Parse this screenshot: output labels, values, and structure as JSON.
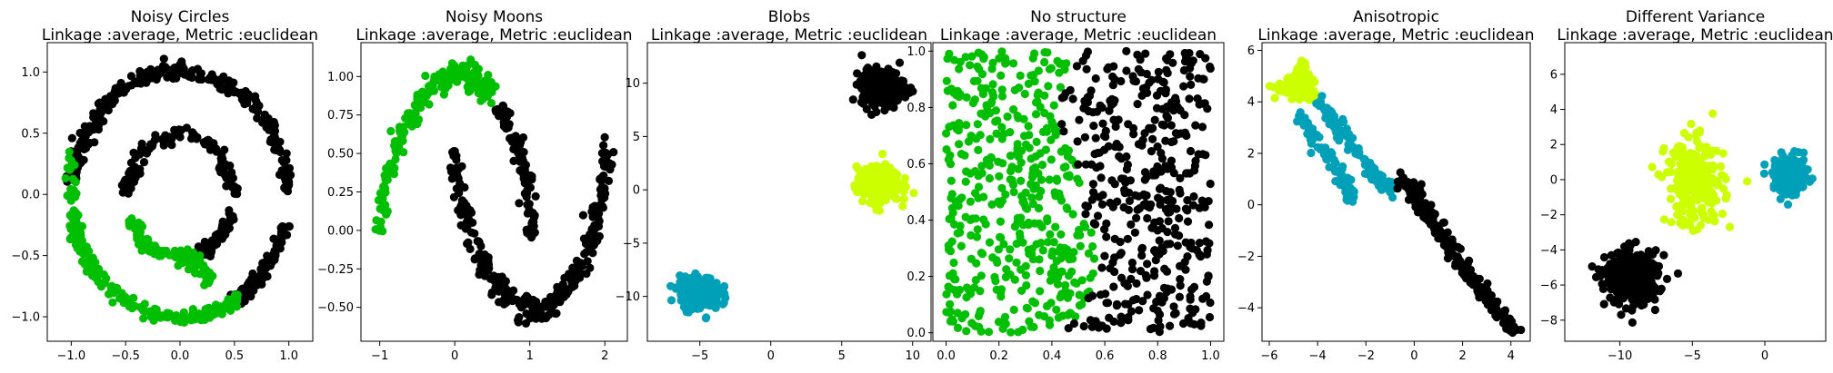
{
  "chart_data": [
    {
      "type": "scatter",
      "title": "Noisy Circles",
      "subtitle": "Linkage :average, Metric :euclidean",
      "xlim": [
        -1.22,
        1.22
      ],
      "ylim": [
        -1.2,
        1.24
      ],
      "xticks": [
        -1.0,
        -0.5,
        0.0,
        0.5,
        1.0
      ],
      "xtick_labels": [
        "−1.0",
        "−0.5",
        "0.0",
        "0.5",
        "1.0"
      ],
      "yticks": [
        -1.0,
        -0.5,
        0.0,
        0.5,
        1.0
      ],
      "ytick_labels": [
        "−1.0",
        "−0.5",
        "0.0",
        "0.5",
        "1.0"
      ],
      "series": [
        {
          "color": "#000000",
          "values": [
            [
              1.0,
              0.0
            ],
            [
              0.95,
              0.3
            ],
            [
              0.81,
              0.58
            ],
            [
              0.6,
              0.8
            ],
            [
              0.3,
              0.95
            ],
            [
              0.0,
              1.02
            ],
            [
              -0.3,
              0.97
            ],
            [
              -0.6,
              0.8
            ],
            [
              -0.8,
              0.6
            ],
            [
              -0.95,
              0.32
            ],
            [
              -0.98,
              0.15
            ],
            [
              0.97,
              -0.25
            ],
            [
              0.86,
              -0.5
            ],
            [
              0.7,
              -0.7
            ],
            [
              0.55,
              -0.85
            ],
            [
              0.5,
              0.0
            ],
            [
              0.35,
              0.36
            ],
            [
              0.0,
              0.52
            ],
            [
              -0.35,
              0.37
            ],
            [
              -0.5,
              0.05
            ],
            [
              0.48,
              -0.15
            ],
            [
              0.35,
              -0.36
            ],
            [
              0.22,
              -0.45
            ]
          ]
        },
        {
          "color": "#00bf00",
          "values": [
            [
              -0.98,
              -0.2
            ],
            [
              -0.93,
              -0.4
            ],
            [
              -0.82,
              -0.6
            ],
            [
              -0.6,
              -0.82
            ],
            [
              -0.3,
              -0.96
            ],
            [
              0.0,
              -1.02
            ],
            [
              0.3,
              -0.97
            ],
            [
              0.5,
              -0.87
            ],
            [
              -0.45,
              -0.2
            ],
            [
              -0.35,
              -0.4
            ],
            [
              -0.15,
              -0.5
            ],
            [
              0.1,
              -0.5
            ],
            [
              0.25,
              -0.68
            ],
            [
              -1.0,
              0.35
            ]
          ]
        }
      ]
    },
    {
      "type": "scatter",
      "title": "Noisy Moons",
      "subtitle": "Linkage :average, Metric :euclidean",
      "xlim": [
        -1.25,
        2.3
      ],
      "ylim": [
        -0.72,
        1.22
      ],
      "xticks": [
        -1,
        0,
        1,
        2
      ],
      "xtick_labels": [
        "−1",
        "0",
        "1",
        "2"
      ],
      "yticks": [
        -0.5,
        -0.25,
        0.0,
        0.25,
        0.5,
        0.75,
        1.0
      ],
      "ytick_labels": [
        "−0.50",
        "−0.25",
        "0.00",
        "0.25",
        "0.50",
        "0.75",
        "1.00"
      ],
      "series": [
        {
          "color": "#00bf00",
          "values": [
            [
              -1.0,
              0.0
            ],
            [
              -0.9,
              0.35
            ],
            [
              -0.7,
              0.65
            ],
            [
              -0.45,
              0.85
            ],
            [
              -0.2,
              0.98
            ],
            [
              0.0,
              1.02
            ],
            [
              0.25,
              0.98
            ],
            [
              0.45,
              0.9
            ]
          ]
        },
        {
          "color": "#000000",
          "values": [
            [
              0.6,
              0.8
            ],
            [
              0.8,
              0.6
            ],
            [
              0.95,
              0.35
            ],
            [
              1.0,
              0.0
            ],
            [
              0.0,
              0.5
            ],
            [
              0.1,
              0.15
            ],
            [
              0.3,
              -0.15
            ],
            [
              0.55,
              -0.35
            ],
            [
              0.85,
              -0.48
            ],
            [
              1.1,
              -0.52
            ],
            [
              1.35,
              -0.45
            ],
            [
              1.6,
              -0.3
            ],
            [
              1.82,
              -0.05
            ],
            [
              1.97,
              0.2
            ],
            [
              2.02,
              0.5
            ]
          ]
        }
      ]
    },
    {
      "type": "scatter",
      "title": "Blobs",
      "subtitle": "Linkage :average, Metric :euclidean",
      "xlim": [
        -8.7,
        11.3
      ],
      "ylim": [
        -14.2,
        13.8
      ],
      "xticks": [
        -5,
        0,
        5,
        10
      ],
      "xtick_labels": [
        "−5",
        "0",
        "5",
        "10"
      ],
      "yticks": [
        -10,
        -5,
        0,
        5,
        10
      ],
      "ytick_labels": [
        "−10",
        "−5",
        "0",
        "5",
        "10"
      ],
      "series": [
        {
          "color": "#000000",
          "values": [
            [
              7.9,
              9.6
            ]
          ],
          "spread": [
            1.5,
            1.7
          ],
          "n": 300
        },
        {
          "color": "#ccff00",
          "values": [
            [
              7.6,
              0.5
            ]
          ],
          "spread": [
            1.5,
            1.6
          ],
          "n": 300
        },
        {
          "color": "#00a0b8",
          "values": [
            [
              -5.0,
              -9.7
            ]
          ],
          "spread": [
            1.4,
            1.5
          ],
          "n": 300
        }
      ]
    },
    {
      "type": "scatter",
      "title": "No structure",
      "subtitle": "Linkage :average, Metric :euclidean",
      "xlim": [
        -0.05,
        1.05
      ],
      "ylim": [
        -0.03,
        1.03
      ],
      "xticks": [
        0.0,
        0.2,
        0.4,
        0.6,
        0.8,
        1.0
      ],
      "xtick_labels": [
        "0.0",
        "0.2",
        "0.4",
        "0.6",
        "0.8",
        "1.0"
      ],
      "yticks": [
        0.0,
        0.2,
        0.4,
        0.6,
        0.8,
        1.0
      ],
      "ytick_labels": [
        "0.0",
        "0.2",
        "0.4",
        "0.6",
        "0.8",
        "1.0"
      ],
      "series": [
        {
          "color": "#00bf00",
          "region": "left"
        },
        {
          "color": "#000000",
          "region": "right"
        }
      ]
    },
    {
      "type": "scatter",
      "title": "Anisotropic",
      "subtitle": "Linkage :average, Metric :euclidean",
      "xlim": [
        -6.3,
        4.8
      ],
      "ylim": [
        -5.3,
        6.3
      ],
      "xticks": [
        -6,
        -4,
        -2,
        0,
        2,
        4
      ],
      "xtick_labels": [
        "−6",
        "−4",
        "−2",
        "0",
        "2",
        "4"
      ],
      "yticks": [
        -4,
        -2,
        0,
        2,
        4,
        6
      ],
      "ytick_labels": [
        "−4",
        "−2",
        "0",
        "2",
        "4",
        "6"
      ],
      "series": [
        {
          "color": "#ccff00",
          "values": [
            [
              -5.0,
              4.8
            ],
            [
              -4.3,
              4.6
            ],
            [
              -4.6,
              5.3
            ],
            [
              -5.7,
              4.5
            ],
            [
              -4.0,
              4.2
            ]
          ]
        },
        {
          "color": "#00a0b8",
          "values": [
            [
              -4.8,
              3.5
            ],
            [
              -3.9,
              2.3
            ],
            [
              -3.0,
              1.0
            ],
            [
              -2.6,
              0.4
            ],
            [
              -4.0,
              4.1
            ],
            [
              -3.2,
              3.0
            ],
            [
              -2.4,
              2.2
            ],
            [
              -1.5,
              1.0
            ],
            [
              -1.0,
              0.6
            ]
          ]
        },
        {
          "color": "#000000",
          "values": [
            [
              -0.5,
              1.0
            ],
            [
              0.0,
              0.5
            ],
            [
              0.5,
              -0.3
            ],
            [
              1.0,
              -1.0
            ],
            [
              1.6,
              -1.8
            ],
            [
              2.2,
              -2.6
            ],
            [
              2.7,
              -3.2
            ],
            [
              3.2,
              -3.8
            ],
            [
              4.1,
              -4.8
            ]
          ]
        }
      ]
    },
    {
      "type": "scatter",
      "title": "Different Variance",
      "subtitle": "Linkage :average, Metric :euclidean",
      "xlim": [
        -13.8,
        4.2
      ],
      "ylim": [
        -9.2,
        7.8
      ],
      "xticks": [
        -10,
        -5,
        0
      ],
      "xtick_labels": [
        "−10",
        "−5",
        "0"
      ],
      "yticks": [
        -8,
        -6,
        -4,
        -2,
        0,
        2,
        4,
        6
      ],
      "ytick_labels": [
        "−8",
        "−6",
        "−4",
        "−2",
        "0",
        "2",
        "4",
        "6"
      ],
      "series": [
        {
          "color": "#000000",
          "values": [
            [
              -9.2,
              -5.6
            ]
          ],
          "spread": [
            1.8,
            1.5
          ],
          "n": 350
        },
        {
          "color": "#ccff00",
          "values": [
            [
              -4.8,
              -0.2
            ]
          ],
          "spread": [
            2.0,
            2.4
          ],
          "n": 280
        },
        {
          "color": "#00a0b8",
          "values": [
            [
              1.8,
              0.2
            ]
          ],
          "spread": [
            1.2,
            1.1
          ],
          "n": 200
        }
      ]
    }
  ]
}
